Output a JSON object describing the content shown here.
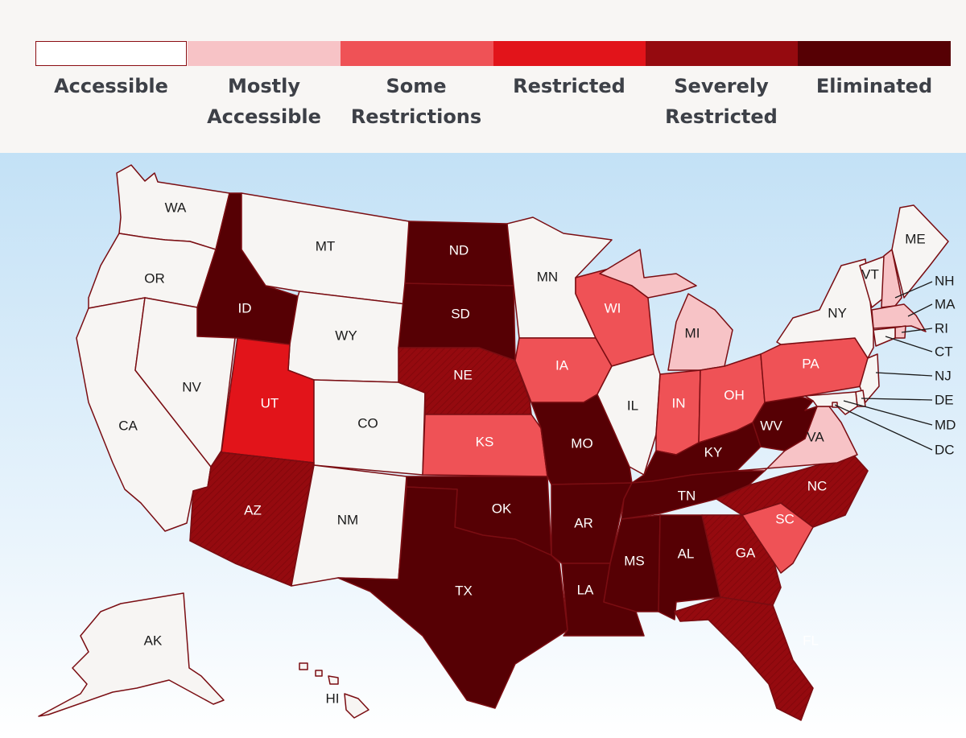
{
  "legend": {
    "items": [
      {
        "key": "accessible",
        "label": "Accessible",
        "color": "#ffffff"
      },
      {
        "key": "mostly",
        "label": "Mostly\nAccessible",
        "color": "#f7c3c6"
      },
      {
        "key": "some",
        "label": "Some\nRestrictions",
        "color": "#ef5256"
      },
      {
        "key": "restricted",
        "label": "Restricted",
        "color": "#e2141a"
      },
      {
        "key": "severe",
        "label": "Severely\nRestricted",
        "color": "#950a0f"
      },
      {
        "key": "eliminated",
        "label": "Eliminated",
        "color": "#560004"
      }
    ]
  },
  "states": {
    "WA": "accessible",
    "OR": "accessible",
    "CA": "accessible",
    "NV": "accessible",
    "ID": "eliminated",
    "MT": "accessible",
    "WY": "accessible",
    "UT": "restricted",
    "CO": "accessible",
    "AZ": "severe",
    "NM": "accessible",
    "ND": "eliminated",
    "SD": "eliminated",
    "NE": "severe",
    "KS": "some",
    "OK": "eliminated",
    "TX": "eliminated",
    "MN": "accessible",
    "IA": "some",
    "MO": "eliminated",
    "AR": "eliminated",
    "LA": "eliminated",
    "WI": "some",
    "IL": "accessible",
    "MI": "mostly",
    "IN": "some",
    "OH": "some",
    "KY": "eliminated",
    "TN": "eliminated",
    "MS": "eliminated",
    "AL": "eliminated",
    "GA": "severe",
    "FL": "severe",
    "SC": "some",
    "NC": "severe",
    "VA": "mostly",
    "WV": "eliminated",
    "PA": "some",
    "NY": "accessible",
    "VT": "accessible",
    "NH": "mostly",
    "ME": "accessible",
    "MA": "mostly",
    "RI": "mostly",
    "CT": "accessible",
    "NJ": "accessible",
    "DE": "accessible",
    "MD": "accessible",
    "DC": "accessible",
    "AK": "accessible",
    "HI": "accessible"
  },
  "labels": {
    "WA": "WA",
    "OR": "OR",
    "CA": "CA",
    "NV": "NV",
    "ID": "ID",
    "MT": "MT",
    "WY": "WY",
    "UT": "UT",
    "CO": "CO",
    "AZ": "AZ",
    "NM": "NM",
    "ND": "ND",
    "SD": "SD",
    "NE": "NE",
    "KS": "KS",
    "OK": "OK",
    "TX": "TX",
    "MN": "MN",
    "IA": "IA",
    "MO": "MO",
    "AR": "AR",
    "LA": "LA",
    "WI": "WI",
    "IL": "IL",
    "MI": "MI",
    "IN": "IN",
    "OH": "OH",
    "KY": "KY",
    "TN": "TN",
    "MS": "MS",
    "AL": "AL",
    "GA": "GA",
    "FL": "FL",
    "SC": "SC",
    "NC": "NC",
    "VA": "VA",
    "WV": "WV",
    "PA": "PA",
    "NY": "NY",
    "VT": "VT",
    "ME": "ME",
    "AK": "AK",
    "HI": "HI"
  },
  "callouts": {
    "NH": "NH",
    "MA": "MA",
    "RI": "RI",
    "CT": "CT",
    "NJ": "NJ",
    "DE": "DE",
    "MD": "MD",
    "DC": "DC"
  }
}
